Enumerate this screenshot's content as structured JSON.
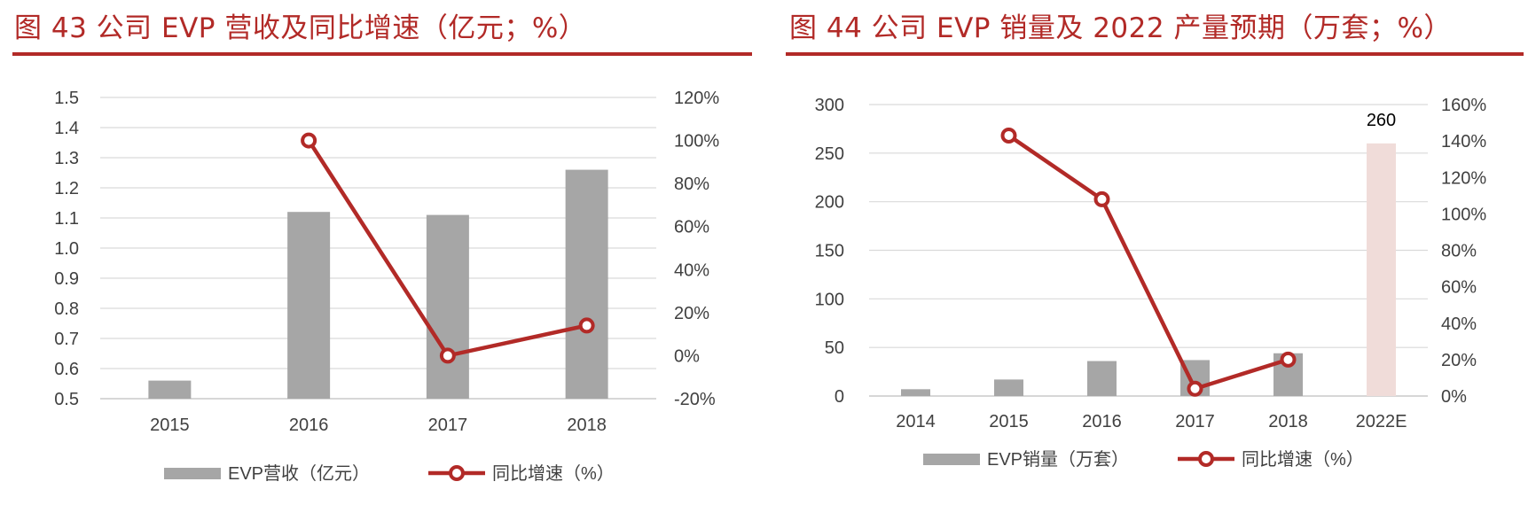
{
  "colors": {
    "title": "#b22a27",
    "bar": "#a6a6a6",
    "line": "#b22a27",
    "projected_bar": "#f0dcd9",
    "grid": "#d9d9d9",
    "text": "#404040"
  },
  "chart_data": [
    {
      "type": "bar+line",
      "title": "图 43 公司 EVP 营收及同比增速（亿元；%）",
      "categories": [
        "2015",
        "2016",
        "2017",
        "2018"
      ],
      "series": [
        {
          "name": "EVP营收（亿元）",
          "kind": "bar",
          "axis": "left",
          "values": [
            0.56,
            1.12,
            1.11,
            1.26
          ]
        },
        {
          "name": "同比增速（%）",
          "kind": "line",
          "axis": "right",
          "values": [
            null,
            100,
            0,
            14
          ]
        }
      ],
      "left_axis": {
        "ylim": [
          0.5,
          1.5
        ],
        "ticks": [
          "1.5",
          "1.4",
          "1.3",
          "1.2",
          "1.1",
          "1.0",
          "0.9",
          "0.8",
          "0.7",
          "0.6",
          "0.5"
        ]
      },
      "right_axis": {
        "ylim": [
          -20,
          120
        ],
        "ticks": [
          "120%",
          "100%",
          "80%",
          "60%",
          "40%",
          "20%",
          "0%",
          "-20%"
        ]
      },
      "legend": [
        "EVP营收（亿元）",
        "同比增速（%）"
      ]
    },
    {
      "type": "bar+line",
      "title": "图 44 公司 EVP 销量及 2022 产量预期（万套；%）",
      "categories": [
        "2014",
        "2015",
        "2016",
        "2017",
        "2018",
        "2022E"
      ],
      "series": [
        {
          "name": "EVP销量（万套）",
          "kind": "bar",
          "axis": "left",
          "values": [
            7,
            17,
            36,
            37,
            44,
            260
          ],
          "projected_index": 5
        },
        {
          "name": "同比增速（%）",
          "kind": "line",
          "axis": "right",
          "values": [
            null,
            143,
            108,
            4,
            20,
            null
          ]
        }
      ],
      "data_labels": [
        "260"
      ],
      "left_axis": {
        "ylim": [
          0,
          300
        ],
        "ticks": [
          "300",
          "250",
          "200",
          "150",
          "100",
          "50",
          "0"
        ]
      },
      "right_axis": {
        "ylim": [
          0,
          160
        ],
        "ticks": [
          "160%",
          "140%",
          "120%",
          "100%",
          "80%",
          "60%",
          "40%",
          "20%",
          "0%"
        ]
      },
      "legend": [
        "EVP销量（万套）",
        "同比增速（%）"
      ]
    }
  ]
}
